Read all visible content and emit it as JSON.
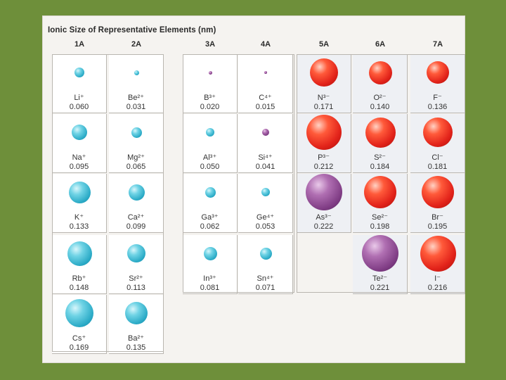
{
  "title": "Ionic Size of Representative Elements (nm)",
  "columns": [
    "1A",
    "2A",
    "3A",
    "4A",
    "5A",
    "6A",
    "7A"
  ],
  "colors": {
    "cation": "#2aaac6",
    "anion": "#e2231a",
    "purple": "#7f3c84",
    "background": "#6e8f3a"
  },
  "ions": [
    {
      "col": 0,
      "row": 0,
      "symbol": "Li⁺",
      "size": "0.060",
      "type": "cation"
    },
    {
      "col": 0,
      "row": 1,
      "symbol": "Na⁺",
      "size": "0.095",
      "type": "cation"
    },
    {
      "col": 0,
      "row": 2,
      "symbol": "K⁺",
      "size": "0.133",
      "type": "cation"
    },
    {
      "col": 0,
      "row": 3,
      "symbol": "Rb⁺",
      "size": "0.148",
      "type": "cation"
    },
    {
      "col": 0,
      "row": 4,
      "symbol": "Cs⁺",
      "size": "0.169",
      "type": "cation"
    },
    {
      "col": 1,
      "row": 0,
      "symbol": "Be²⁺",
      "size": "0.031",
      "type": "cation"
    },
    {
      "col": 1,
      "row": 1,
      "symbol": "Mg²⁺",
      "size": "0.065",
      "type": "cation"
    },
    {
      "col": 1,
      "row": 2,
      "symbol": "Ca²⁺",
      "size": "0.099",
      "type": "cation"
    },
    {
      "col": 1,
      "row": 3,
      "symbol": "Sr²⁺",
      "size": "0.113",
      "type": "cation"
    },
    {
      "col": 1,
      "row": 4,
      "symbol": "Ba²⁺",
      "size": "0.135",
      "type": "cation"
    },
    {
      "col": 2,
      "row": 0,
      "symbol": "B³⁺",
      "size": "0.020",
      "type": "purple"
    },
    {
      "col": 2,
      "row": 1,
      "symbol": "Al³⁺",
      "size": "0.050",
      "type": "cation"
    },
    {
      "col": 2,
      "row": 2,
      "symbol": "Ga³⁺",
      "size": "0.062",
      "type": "cation"
    },
    {
      "col": 2,
      "row": 3,
      "symbol": "In³⁺",
      "size": "0.081",
      "type": "cation"
    },
    {
      "col": 3,
      "row": 0,
      "symbol": "C⁴⁺",
      "size": "0.015",
      "type": "purple"
    },
    {
      "col": 3,
      "row": 1,
      "symbol": "Si⁴⁺",
      "size": "0.041",
      "type": "purple"
    },
    {
      "col": 3,
      "row": 2,
      "symbol": "Ge⁴⁺",
      "size": "0.053",
      "type": "cation"
    },
    {
      "col": 3,
      "row": 3,
      "symbol": "Sn⁴⁺",
      "size": "0.071",
      "type": "cation"
    },
    {
      "col": 4,
      "row": 0,
      "symbol": "N³⁻",
      "size": "0.171",
      "type": "anion"
    },
    {
      "col": 4,
      "row": 1,
      "symbol": "P³⁻",
      "size": "0.212",
      "type": "anion"
    },
    {
      "col": 4,
      "row": 2,
      "symbol": "As³⁻",
      "size": "0.222",
      "type": "purple"
    },
    {
      "col": 5,
      "row": 0,
      "symbol": "O²⁻",
      "size": "0.140",
      "type": "anion"
    },
    {
      "col": 5,
      "row": 1,
      "symbol": "S²⁻",
      "size": "0.184",
      "type": "anion"
    },
    {
      "col": 5,
      "row": 2,
      "symbol": "Se²⁻",
      "size": "0.198",
      "type": "anion"
    },
    {
      "col": 5,
      "row": 3,
      "symbol": "Te²⁻",
      "size": "0.221",
      "type": "purple"
    },
    {
      "col": 6,
      "row": 0,
      "symbol": "F⁻",
      "size": "0.136",
      "type": "anion"
    },
    {
      "col": 6,
      "row": 1,
      "symbol": "Cl⁻",
      "size": "0.181",
      "type": "anion"
    },
    {
      "col": 6,
      "row": 2,
      "symbol": "Br⁻",
      "size": "0.195",
      "type": "anion"
    },
    {
      "col": 6,
      "row": 3,
      "symbol": "I⁻",
      "size": "0.216",
      "type": "anion"
    }
  ]
}
